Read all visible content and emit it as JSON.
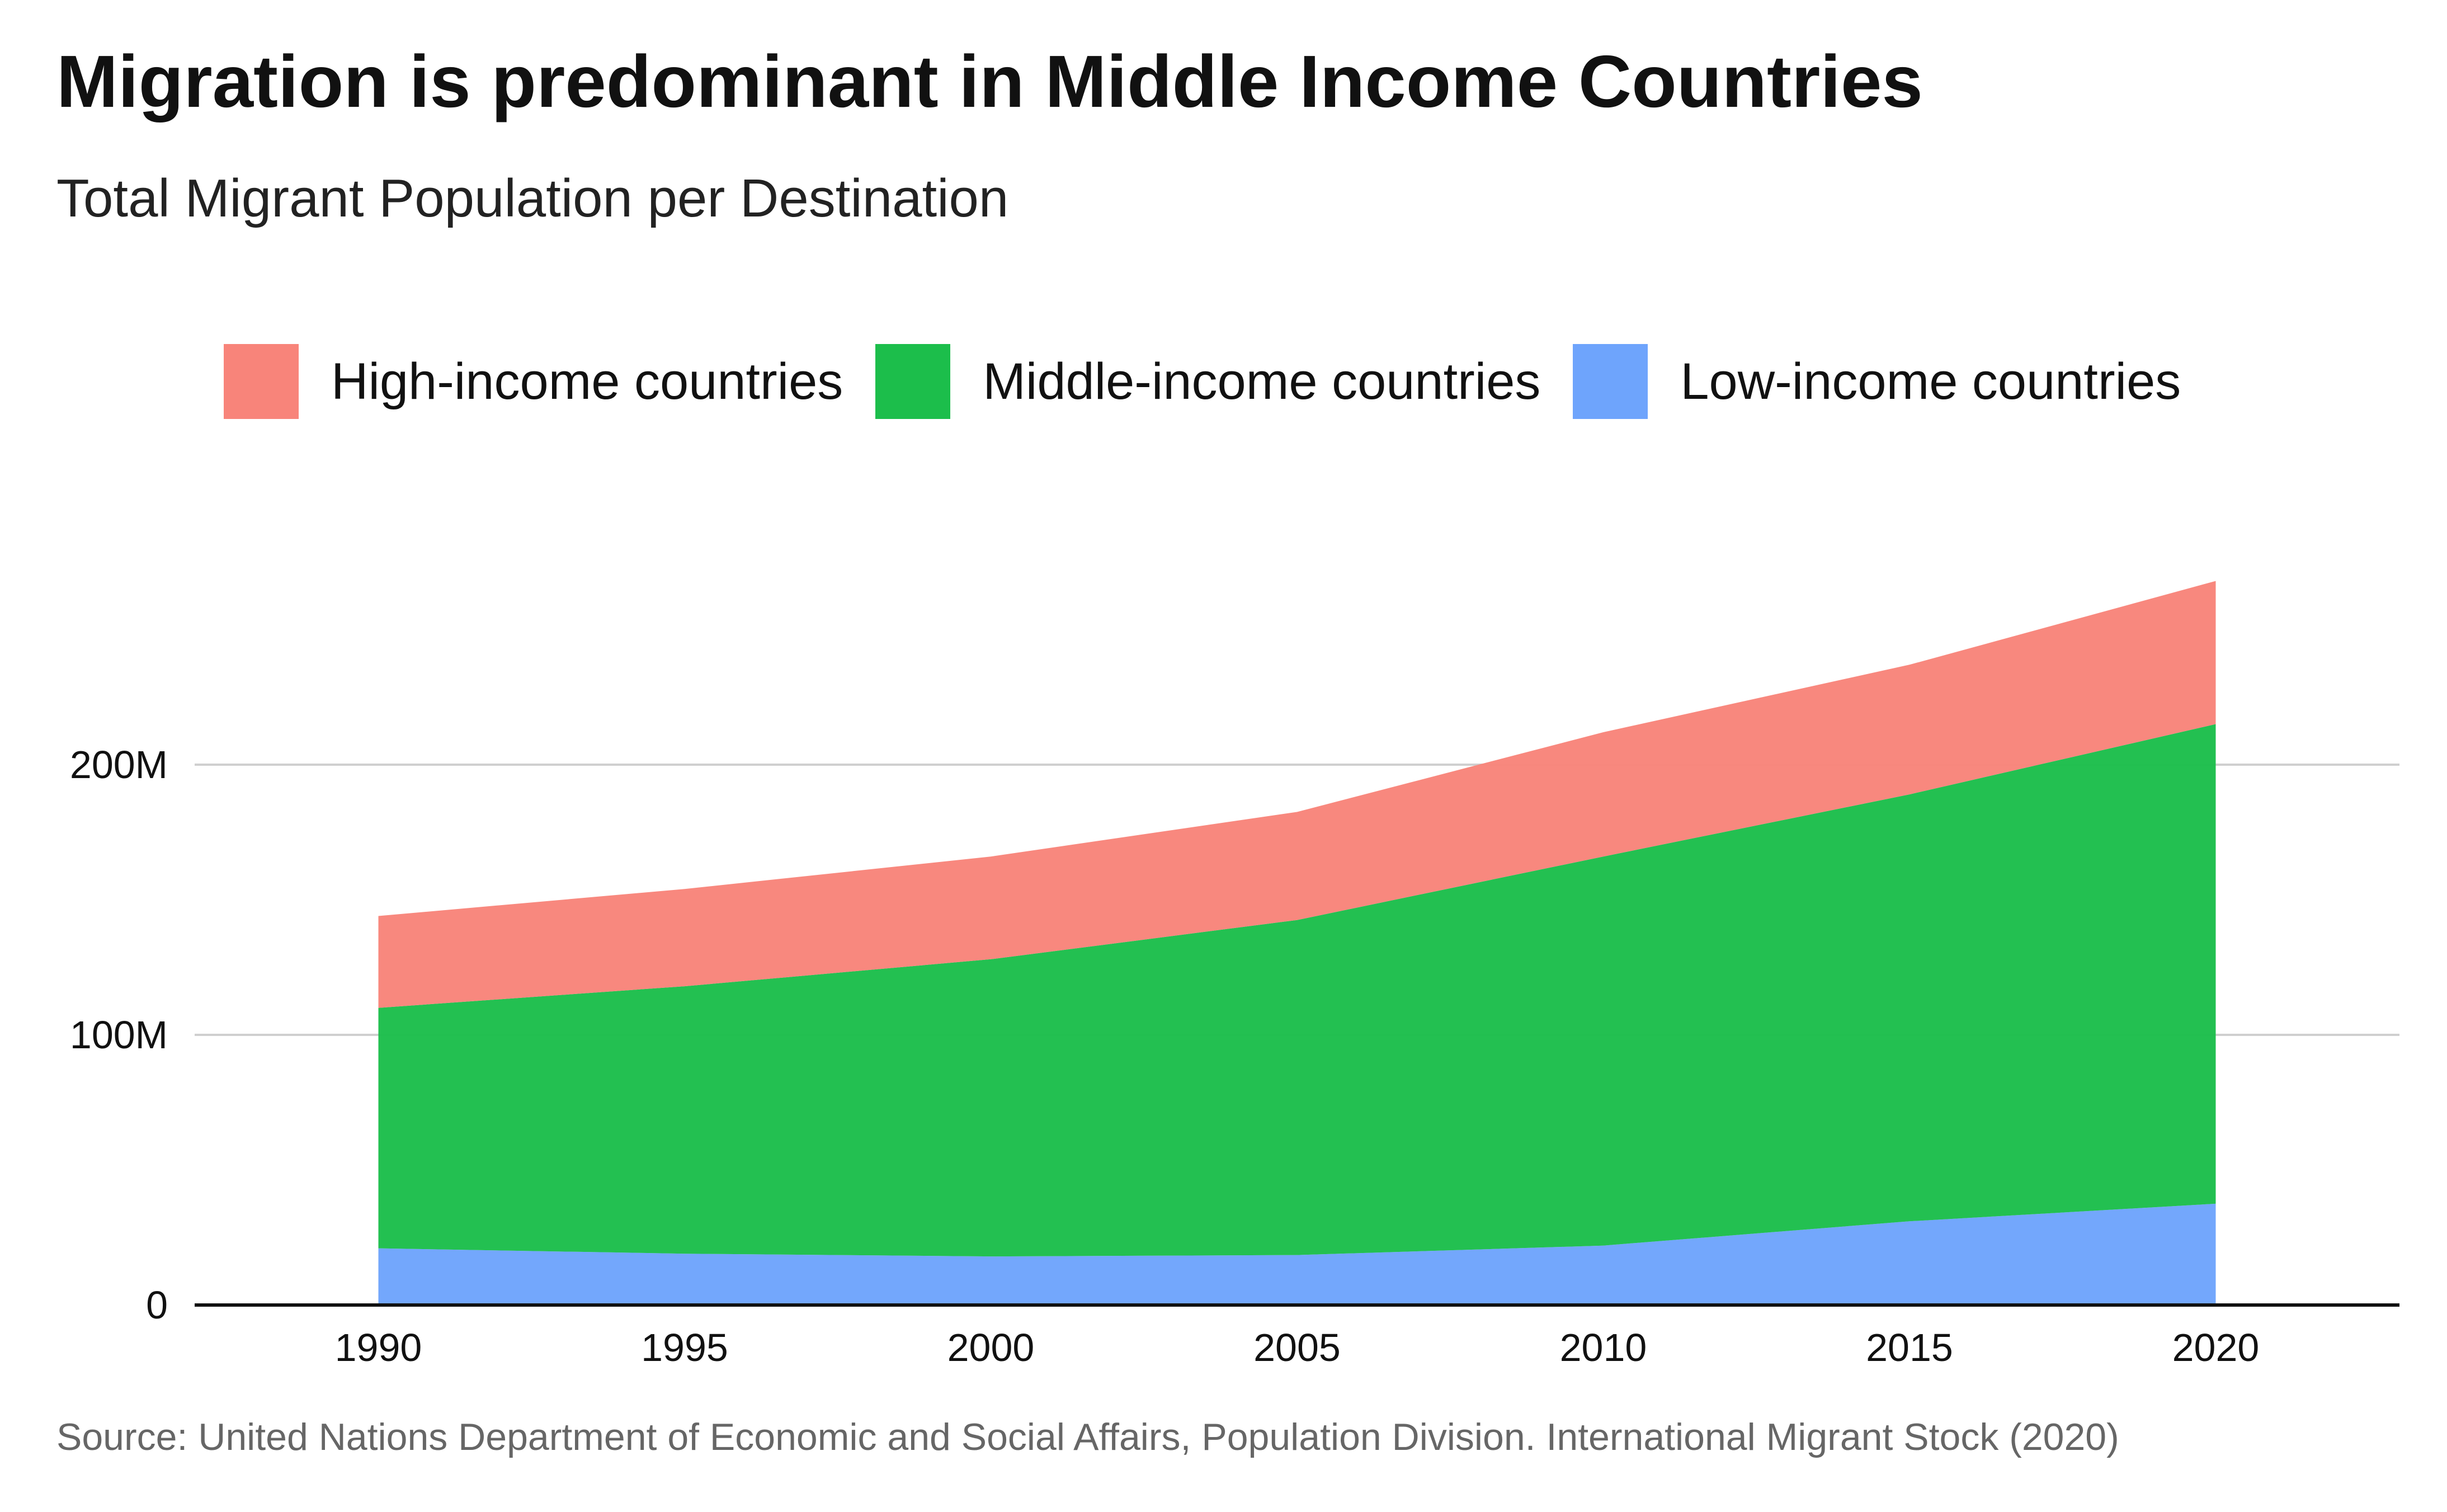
{
  "title": "Migration is predominant in Middle Income Countries",
  "subtitle": "Total Migrant Population per Destination",
  "source": "Source: United Nations Department of Economic and Social Affairs, Population Division. International Migrant Stock (2020)",
  "legend": [
    {
      "label": "High-income countries",
      "color": "#f8847a"
    },
    {
      "label": "Middle-income countries",
      "color": "#1cbe4b"
    },
    {
      "label": "Low-income countries",
      "color": "#6ea4fc"
    }
  ],
  "chart_data": {
    "type": "area",
    "stacked": true,
    "x": [
      1990,
      1995,
      2000,
      2005,
      2010,
      2015,
      2020
    ],
    "x_tick_labels": [
      "1990",
      "1995",
      "2000",
      "2005",
      "2010",
      "2015",
      "2020"
    ],
    "y_tick_values": [
      0,
      100000000,
      200000000
    ],
    "y_tick_labels": [
      "0",
      "100M",
      "200M"
    ],
    "xlim": [
      1987,
      2023
    ],
    "ylim": [
      0,
      290000000
    ],
    "grid": "horizontal",
    "legend_position": "top",
    "series": [
      {
        "name": "Low-income countries",
        "color": "#6ea4fc",
        "values": [
          21000000,
          19000000,
          18000000,
          18500000,
          22000000,
          31000000,
          37500000
        ]
      },
      {
        "name": "Middle-income countries",
        "color": "#1cbe4b",
        "values": [
          89000000,
          99000000,
          110000000,
          124000000,
          144000000,
          158000000,
          177500000
        ]
      },
      {
        "name": "High-income countries",
        "color": "#f8847a",
        "values": [
          34000000,
          36000000,
          38000000,
          40000000,
          46000000,
          48000000,
          53000000
        ]
      }
    ]
  }
}
